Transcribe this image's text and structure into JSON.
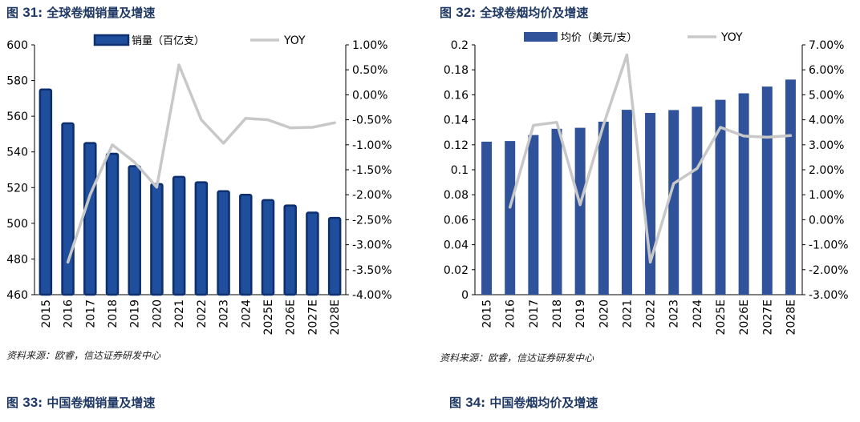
{
  "figures": [
    {
      "label": "图",
      "num": "31",
      "sep": ":",
      "title": "全球卷烟销量及增速"
    },
    {
      "label": "图",
      "num": "32",
      "sep": ":",
      "title": "全球卷烟均价及增速"
    },
    {
      "label": "图",
      "num": "33",
      "sep": ":",
      "title": "中国卷烟销量及增速"
    },
    {
      "label": "图",
      "num": "34",
      "sep": ":",
      "title": "中国卷烟均价及增速"
    }
  ],
  "sources": {
    "left": "资料来源：欧睿，信达证券研发中心",
    "right": "资料来源：欧睿，信达证券研发中心"
  },
  "colors": {
    "title": "#1f3864",
    "bar_left": "#1f4e9c",
    "bar_left_edge": "#0d2f6e",
    "bar_right": "#2f529a",
    "line": "#c8c8c8",
    "axis": "#000000"
  },
  "chart_data": [
    {
      "type": "bar",
      "title": "全球卷烟销量及增速",
      "categories": [
        "2015",
        "2016",
        "2017",
        "2018",
        "2019",
        "2020",
        "2021",
        "2022",
        "2023",
        "2024",
        "2025E",
        "2026E",
        "2027E",
        "2028E"
      ],
      "series": [
        {
          "name": "销量（百亿支）",
          "type": "bar",
          "axis": "left",
          "values": [
            575,
            556,
            545,
            539,
            532,
            522,
            526,
            523,
            518,
            516,
            513,
            510,
            506,
            503
          ]
        },
        {
          "name": "YOY",
          "type": "line",
          "axis": "right",
          "values": [
            null,
            -3.35,
            -2.0,
            -1.0,
            -1.35,
            -1.85,
            0.6,
            -0.5,
            -0.97,
            -0.47,
            -0.5,
            -0.66,
            -0.65,
            -0.56
          ]
        }
      ],
      "ylim_left": [
        460,
        600
      ],
      "yticks_left": [
        "460",
        "480",
        "500",
        "520",
        "540",
        "560",
        "580",
        "600"
      ],
      "ylim_right": [
        -4.0,
        1.0
      ],
      "yticks_right": [
        "-4.00%",
        "-3.50%",
        "-3.00%",
        "-2.50%",
        "-2.00%",
        "-1.50%",
        "-1.00%",
        "-0.50%",
        "0.00%",
        "0.50%",
        "1.00%"
      ],
      "legend_position": "top"
    },
    {
      "type": "bar",
      "title": "全球卷烟均价及增速",
      "categories": [
        "2015",
        "2016",
        "2017",
        "2018",
        "2019",
        "2020",
        "2021",
        "2022",
        "2023",
        "2024",
        "2025E",
        "2026E",
        "2027E",
        "2028E"
      ],
      "series": [
        {
          "name": "均价（美元/支）",
          "type": "bar",
          "axis": "left",
          "values": [
            0.1225,
            0.123,
            0.1278,
            0.1328,
            0.1336,
            0.1385,
            0.148,
            0.1455,
            0.1478,
            0.1505,
            0.156,
            0.1612,
            0.1666,
            0.1722
          ]
        },
        {
          "name": "YOY",
          "type": "line",
          "axis": "right",
          "values": [
            null,
            0.5,
            3.78,
            3.9,
            0.6,
            3.8,
            6.6,
            -1.7,
            1.45,
            2.05,
            3.7,
            3.35,
            3.3,
            3.37
          ]
        }
      ],
      "ylim_left": [
        0,
        0.2
      ],
      "yticks_left": [
        "0",
        "0.02",
        "0.04",
        "0.06",
        "0.08",
        "0.1",
        "0.12",
        "0.14",
        "0.16",
        "0.18",
        "0.2"
      ],
      "ylim_right": [
        -3.0,
        7.0
      ],
      "yticks_right": [
        "-3.00%",
        "-2.00%",
        "-1.00%",
        "0.00%",
        "1.00%",
        "2.00%",
        "3.00%",
        "4.00%",
        "5.00%",
        "6.00%",
        "7.00%"
      ],
      "legend_position": "top"
    }
  ]
}
